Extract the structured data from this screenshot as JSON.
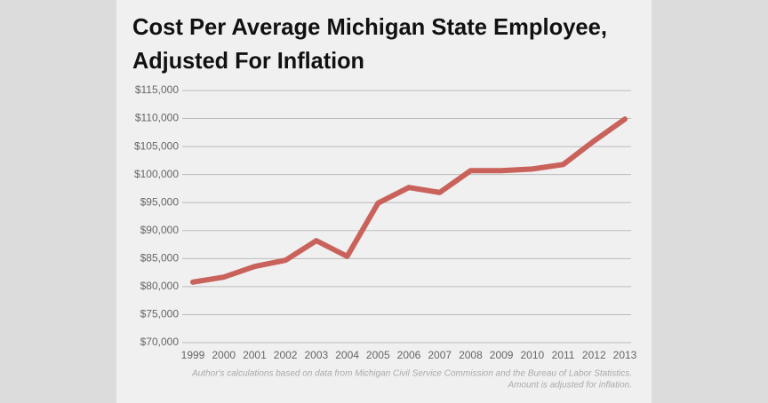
{
  "chart_data": {
    "type": "line",
    "title": [
      "Cost Per Average Michigan State Employee,",
      "Adjusted For Inflation"
    ],
    "notes": [
      "Author's calculations based on data from Michigan Civil Service Commission and the Bureau of Labor Statistics.",
      "Amount is adjusted for inflation."
    ],
    "categories": [
      "1999",
      "2000",
      "2001",
      "2002",
      "2003",
      "2004",
      "2005",
      "2006",
      "2007",
      "2008",
      "2009",
      "2010",
      "2011",
      "2012",
      "2013"
    ],
    "values": [
      80800,
      81700,
      83600,
      84700,
      88200,
      85400,
      94900,
      97700,
      96800,
      100700,
      100700,
      101000,
      101800,
      106000,
      109900
    ],
    "color": "#c9625a",
    "ylim": [
      70000,
      115000
    ],
    "yticks": [
      {
        "value": 70000,
        "label": "$70,000"
      },
      {
        "value": 75000,
        "label": "$75,000"
      },
      {
        "value": 80000,
        "label": "$80,000"
      },
      {
        "value": 85000,
        "label": "$85,000"
      },
      {
        "value": 90000,
        "label": "$90,000"
      },
      {
        "value": 95000,
        "label": "$95,000"
      },
      {
        "value": 100000,
        "label": "$100,000"
      },
      {
        "value": 105000,
        "label": "$105,000"
      },
      {
        "value": 110000,
        "label": "$110,000"
      },
      {
        "value": 115000,
        "label": "$115,000"
      }
    ],
    "grid": true
  }
}
